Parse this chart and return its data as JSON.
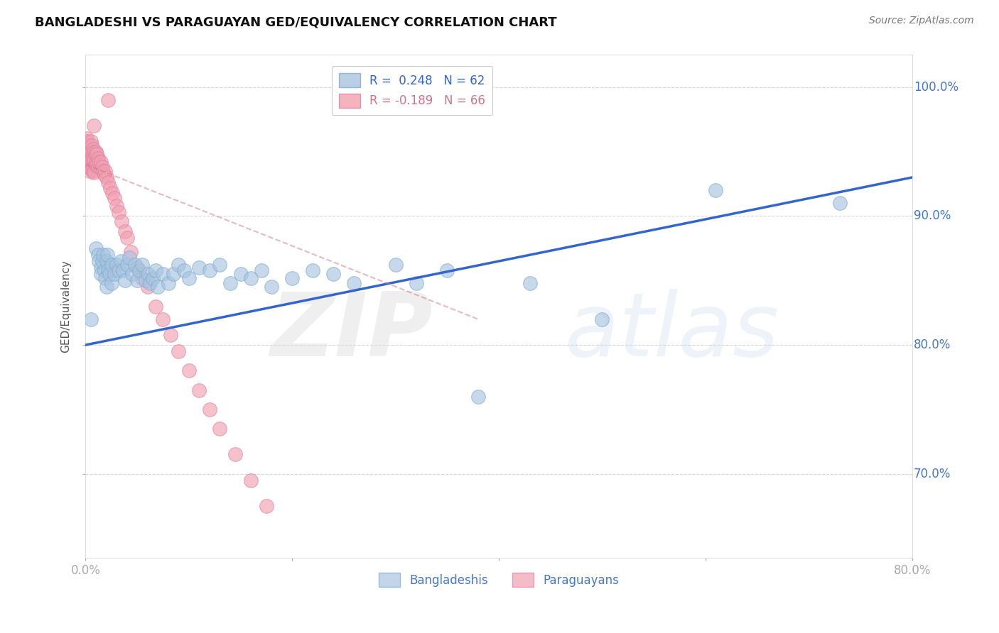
{
  "title": "BANGLADESHI VS PARAGUAYAN GED/EQUIVALENCY CORRELATION CHART",
  "source": "Source: ZipAtlas.com",
  "ylabel": "GED/Equivalency",
  "xlim": [
    0.0,
    0.8
  ],
  "ylim": [
    0.635,
    1.025
  ],
  "xticks": [
    0.0,
    0.2,
    0.4,
    0.6,
    0.8
  ],
  "xticklabels": [
    "0.0%",
    "",
    "",
    "",
    "80.0%"
  ],
  "yticks": [
    0.7,
    0.8,
    0.9,
    1.0
  ],
  "yticklabels": [
    "70.0%",
    "80.0%",
    "90.0%",
    "100.0%"
  ],
  "legend_r_blue": "R =  0.248",
  "legend_n_blue": "N = 62",
  "legend_r_pink": "R = -0.189",
  "legend_n_pink": "N = 66",
  "blue_color": "#A8C4E0",
  "blue_edge_color": "#7AADD0",
  "pink_color": "#F0A0B0",
  "pink_edge_color": "#E080A0",
  "trend_blue_color": "#3366CC",
  "trend_pink_color": "#CC7788",
  "watermark_zip": "ZIP",
  "watermark_atlas": "atlas",
  "grid_color": "#CCCCCC",
  "background_color": "#FFFFFF",
  "blue_scatter_x": [
    0.005,
    0.01,
    0.012,
    0.013,
    0.015,
    0.015,
    0.016,
    0.017,
    0.018,
    0.019,
    0.02,
    0.02,
    0.021,
    0.022,
    0.023,
    0.025,
    0.025,
    0.028,
    0.03,
    0.032,
    0.034,
    0.036,
    0.038,
    0.04,
    0.042,
    0.045,
    0.048,
    0.05,
    0.052,
    0.055,
    0.058,
    0.06,
    0.062,
    0.065,
    0.068,
    0.07,
    0.075,
    0.08,
    0.085,
    0.09,
    0.095,
    0.1,
    0.11,
    0.12,
    0.13,
    0.14,
    0.15,
    0.16,
    0.17,
    0.18,
    0.2,
    0.22,
    0.24,
    0.26,
    0.3,
    0.32,
    0.35,
    0.38,
    0.43,
    0.5,
    0.61,
    0.73
  ],
  "blue_scatter_y": [
    0.82,
    0.875,
    0.87,
    0.865,
    0.86,
    0.855,
    0.865,
    0.87,
    0.858,
    0.852,
    0.865,
    0.845,
    0.87,
    0.858,
    0.855,
    0.862,
    0.848,
    0.855,
    0.862,
    0.858,
    0.865,
    0.858,
    0.85,
    0.862,
    0.868,
    0.855,
    0.862,
    0.85,
    0.858,
    0.862,
    0.85,
    0.855,
    0.848,
    0.852,
    0.858,
    0.845,
    0.855,
    0.848,
    0.855,
    0.862,
    0.858,
    0.852,
    0.86,
    0.858,
    0.862,
    0.848,
    0.855,
    0.852,
    0.858,
    0.845,
    0.852,
    0.858,
    0.855,
    0.848,
    0.862,
    0.848,
    0.858,
    0.76,
    0.848,
    0.82,
    0.92,
    0.91
  ],
  "pink_scatter_x": [
    0.0,
    0.001,
    0.001,
    0.002,
    0.002,
    0.002,
    0.003,
    0.003,
    0.003,
    0.004,
    0.004,
    0.004,
    0.005,
    0.005,
    0.005,
    0.006,
    0.006,
    0.006,
    0.007,
    0.007,
    0.007,
    0.008,
    0.008,
    0.008,
    0.009,
    0.009,
    0.01,
    0.01,
    0.011,
    0.011,
    0.012,
    0.012,
    0.013,
    0.014,
    0.015,
    0.016,
    0.017,
    0.018,
    0.019,
    0.02,
    0.022,
    0.024,
    0.026,
    0.028,
    0.03,
    0.032,
    0.035,
    0.038,
    0.04,
    0.044,
    0.05,
    0.055,
    0.06,
    0.068,
    0.075,
    0.082,
    0.09,
    0.1,
    0.11,
    0.12,
    0.13,
    0.145,
    0.16,
    0.175,
    0.022,
    0.008
  ],
  "pink_scatter_y": [
    0.955,
    0.96,
    0.95,
    0.958,
    0.948,
    0.94,
    0.955,
    0.948,
    0.938,
    0.952,
    0.945,
    0.935,
    0.958,
    0.95,
    0.942,
    0.955,
    0.945,
    0.936,
    0.952,
    0.945,
    0.935,
    0.95,
    0.943,
    0.934,
    0.948,
    0.94,
    0.95,
    0.942,
    0.948,
    0.94,
    0.945,
    0.938,
    0.942,
    0.938,
    0.942,
    0.938,
    0.935,
    0.932,
    0.935,
    0.93,
    0.926,
    0.922,
    0.918,
    0.914,
    0.908,
    0.903,
    0.896,
    0.888,
    0.883,
    0.872,
    0.86,
    0.852,
    0.845,
    0.83,
    0.82,
    0.808,
    0.795,
    0.78,
    0.765,
    0.75,
    0.735,
    0.715,
    0.695,
    0.675,
    0.99,
    0.97
  ],
  "blue_trend_x": [
    0.0,
    0.8
  ],
  "blue_trend_y": [
    0.8,
    0.93
  ],
  "pink_trend_x": [
    0.0,
    0.38
  ],
  "pink_trend_y": [
    0.94,
    0.82
  ]
}
